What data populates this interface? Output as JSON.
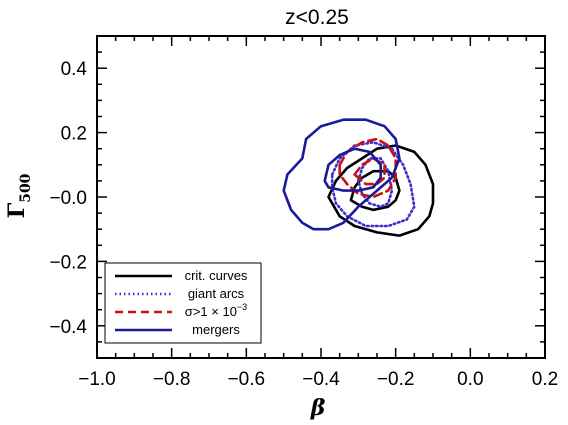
{
  "chart_data": {
    "type": "line",
    "title": "z<0.25",
    "xlabel": "β",
    "ylabel": "Γ",
    "ylabel_subscript": "500",
    "xlim": [
      -1.0,
      0.2
    ],
    "ylim": [
      -0.5,
      0.5
    ],
    "x_ticks": [
      -1.0,
      -0.8,
      -0.6,
      -0.4,
      -0.2,
      0.0,
      0.2
    ],
    "x_tick_labels": [
      "−1.0",
      "−0.8",
      "−0.6",
      "−0.4",
      "−0.2",
      "0.0",
      "0.2"
    ],
    "y_ticks": [
      -0.4,
      -0.2,
      0.0,
      0.2,
      0.4
    ],
    "y_tick_labels": [
      "−0.4",
      "−0.2",
      "−0.0",
      "0.2",
      "0.4"
    ],
    "grid": false,
    "legend_position": "bottom-left",
    "series": [
      {
        "name": "crit. curves",
        "color": "#000000",
        "dash": "solid",
        "contours": [
          [
            [
              -0.38,
              0.0
            ],
            [
              -0.36,
              0.05
            ],
            [
              -0.33,
              0.09
            ],
            [
              -0.29,
              0.12
            ],
            [
              -0.25,
              0.15
            ],
            [
              -0.2,
              0.16
            ],
            [
              -0.15,
              0.14
            ],
            [
              -0.12,
              0.1
            ],
            [
              -0.1,
              0.04
            ],
            [
              -0.1,
              -0.02
            ],
            [
              -0.11,
              -0.06
            ],
            [
              -0.14,
              -0.1
            ],
            [
              -0.19,
              -0.12
            ],
            [
              -0.25,
              -0.11
            ],
            [
              -0.31,
              -0.09
            ],
            [
              -0.35,
              -0.06
            ],
            [
              -0.38,
              0.0
            ]
          ],
          [
            [
              -0.32,
              -0.01
            ],
            [
              -0.31,
              0.03
            ],
            [
              -0.29,
              0.06
            ],
            [
              -0.26,
              0.08
            ],
            [
              -0.22,
              0.08
            ],
            [
              -0.2,
              0.06
            ],
            [
              -0.19,
              0.02
            ],
            [
              -0.2,
              -0.01
            ],
            [
              -0.22,
              -0.03
            ],
            [
              -0.26,
              -0.04
            ],
            [
              -0.29,
              -0.03
            ],
            [
              -0.32,
              -0.01
            ]
          ]
        ]
      },
      {
        "name": "giant arcs",
        "color": "#3a2fd0",
        "dash": "dotted",
        "contours": [
          [
            [
              -0.37,
              0.07
            ],
            [
              -0.35,
              0.12
            ],
            [
              -0.31,
              0.16
            ],
            [
              -0.26,
              0.17
            ],
            [
              -0.21,
              0.15
            ],
            [
              -0.18,
              0.1
            ],
            [
              -0.16,
              0.04
            ],
            [
              -0.15,
              -0.03
            ],
            [
              -0.17,
              -0.07
            ],
            [
              -0.22,
              -0.09
            ],
            [
              -0.28,
              -0.09
            ],
            [
              -0.33,
              -0.06
            ],
            [
              -0.36,
              -0.02
            ],
            [
              -0.37,
              0.03
            ],
            [
              -0.37,
              0.07
            ]
          ],
          [
            [
              -0.3,
              0.05
            ],
            [
              -0.29,
              0.09
            ],
            [
              -0.27,
              0.12
            ],
            [
              -0.24,
              0.12
            ],
            [
              -0.22,
              0.08
            ],
            [
              -0.21,
              0.02
            ],
            [
              -0.22,
              -0.02
            ],
            [
              -0.24,
              -0.03
            ],
            [
              -0.27,
              -0.02
            ],
            [
              -0.29,
              0.01
            ],
            [
              -0.3,
              0.05
            ]
          ]
        ]
      },
      {
        "name": "σ>1 × 10",
        "name_superscript": "−3",
        "color": "#cc1111",
        "dash": "dashed",
        "contours": [
          [
            [
              -0.35,
              0.1
            ],
            [
              -0.33,
              0.14
            ],
            [
              -0.29,
              0.17
            ],
            [
              -0.25,
              0.18
            ],
            [
              -0.22,
              0.16
            ],
            [
              -0.2,
              0.12
            ],
            [
              -0.2,
              0.06
            ],
            [
              -0.22,
              0.02
            ],
            [
              -0.26,
              0.0
            ],
            [
              -0.3,
              0.01
            ],
            [
              -0.33,
              0.04
            ],
            [
              -0.35,
              0.07
            ],
            [
              -0.35,
              0.1
            ]
          ],
          [
            [
              -0.31,
              0.07
            ],
            [
              -0.29,
              0.1
            ],
            [
              -0.26,
              0.12
            ],
            [
              -0.23,
              0.1
            ],
            [
              -0.23,
              0.06
            ],
            [
              -0.25,
              0.04
            ],
            [
              -0.28,
              0.04
            ],
            [
              -0.31,
              0.07
            ]
          ]
        ]
      },
      {
        "name": "mergers",
        "color": "#1a1a9a",
        "dash": "solid",
        "contours": [
          [
            [
              -0.45,
              0.12
            ],
            [
              -0.44,
              0.18
            ],
            [
              -0.4,
              0.22
            ],
            [
              -0.34,
              0.24
            ],
            [
              -0.28,
              0.24
            ],
            [
              -0.23,
              0.22
            ],
            [
              -0.2,
              0.18
            ],
            [
              -0.19,
              0.12
            ],
            [
              -0.21,
              0.06
            ],
            [
              -0.25,
              0.02
            ],
            [
              -0.3,
              -0.03
            ],
            [
              -0.34,
              -0.08
            ],
            [
              -0.38,
              -0.1
            ],
            [
              -0.42,
              -0.1
            ],
            [
              -0.45,
              -0.08
            ],
            [
              -0.48,
              -0.04
            ],
            [
              -0.5,
              0.02
            ],
            [
              -0.49,
              0.07
            ],
            [
              -0.45,
              0.12
            ]
          ],
          [
            [
              -0.39,
              0.05
            ],
            [
              -0.38,
              0.1
            ],
            [
              -0.35,
              0.13
            ],
            [
              -0.31,
              0.15
            ],
            [
              -0.27,
              0.14
            ],
            [
              -0.24,
              0.1
            ],
            [
              -0.24,
              0.06
            ],
            [
              -0.26,
              0.03
            ],
            [
              -0.3,
              0.02
            ],
            [
              -0.34,
              0.02
            ],
            [
              -0.38,
              0.03
            ],
            [
              -0.39,
              0.05
            ]
          ]
        ]
      }
    ]
  }
}
